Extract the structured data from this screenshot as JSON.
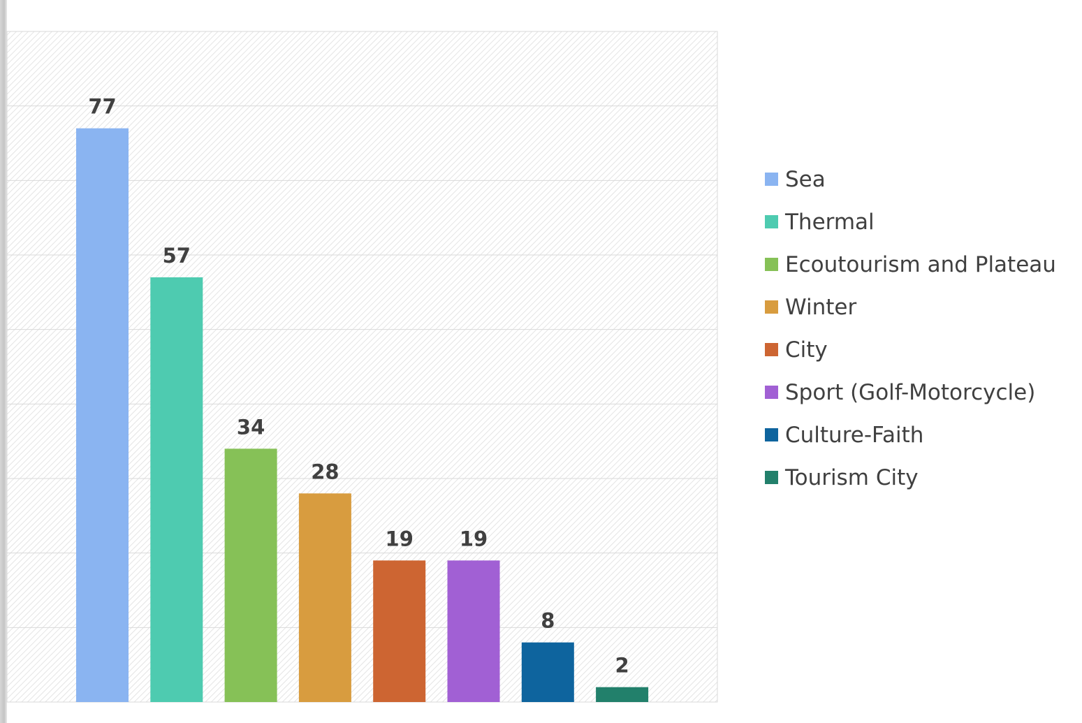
{
  "chart_data": {
    "type": "bar",
    "title": "",
    "xlabel": "",
    "ylabel": "",
    "ylim": [
      0,
      90
    ],
    "grid": true,
    "legend_position": "right",
    "categories": [
      "Sea",
      "Thermal",
      "Ecoutourism and Plateau",
      "Winter",
      "City",
      "Sport (Golf-Motorcycle)",
      "Culture-Faith",
      "Tourism City"
    ],
    "values": [
      77,
      57,
      34,
      28,
      19,
      19,
      8,
      2
    ],
    "colors": [
      "#8ab4f1",
      "#4ecbb0",
      "#86c157",
      "#d89c3f",
      "#cd6532",
      "#a160d4",
      "#0e649e",
      "#22806b"
    ],
    "data_labels": [
      "77",
      "57",
      "34",
      "28",
      "19",
      "19",
      "8",
      "2"
    ]
  }
}
